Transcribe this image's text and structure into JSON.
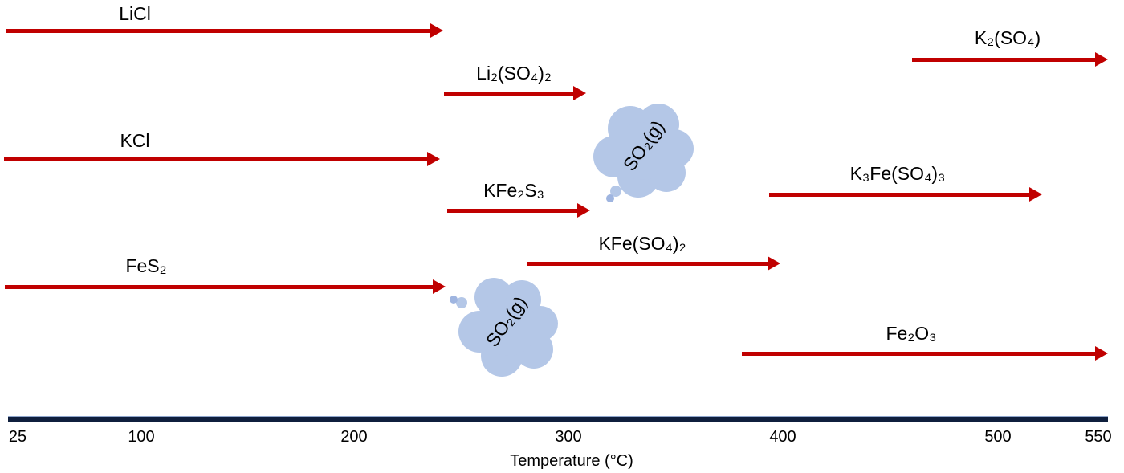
{
  "species": [
    {
      "label": "LiCl"
    },
    {
      "label": "Li₂(SO₄)₂"
    },
    {
      "label": "K₂(SO₄)"
    },
    {
      "label": "KCl"
    },
    {
      "label": "KFe₂S₃"
    },
    {
      "label": "K₃Fe(SO₄)₃"
    },
    {
      "label": "KFe(SO₄)₂"
    },
    {
      "label": "FeS₂"
    },
    {
      "label": "Fe₂O₃"
    }
  ],
  "clouds": [
    {
      "label": "SO₂(g)"
    },
    {
      "label": "SO₂(g)"
    }
  ],
  "axis": {
    "title": "Temperature (°C)",
    "ticks": [
      "25",
      "100",
      "200",
      "300",
      "400",
      "500",
      "550"
    ]
  },
  "colors": {
    "arrow": "#c00000",
    "cloud": "#b4c7e7",
    "axis": "#0f1f3d"
  }
}
